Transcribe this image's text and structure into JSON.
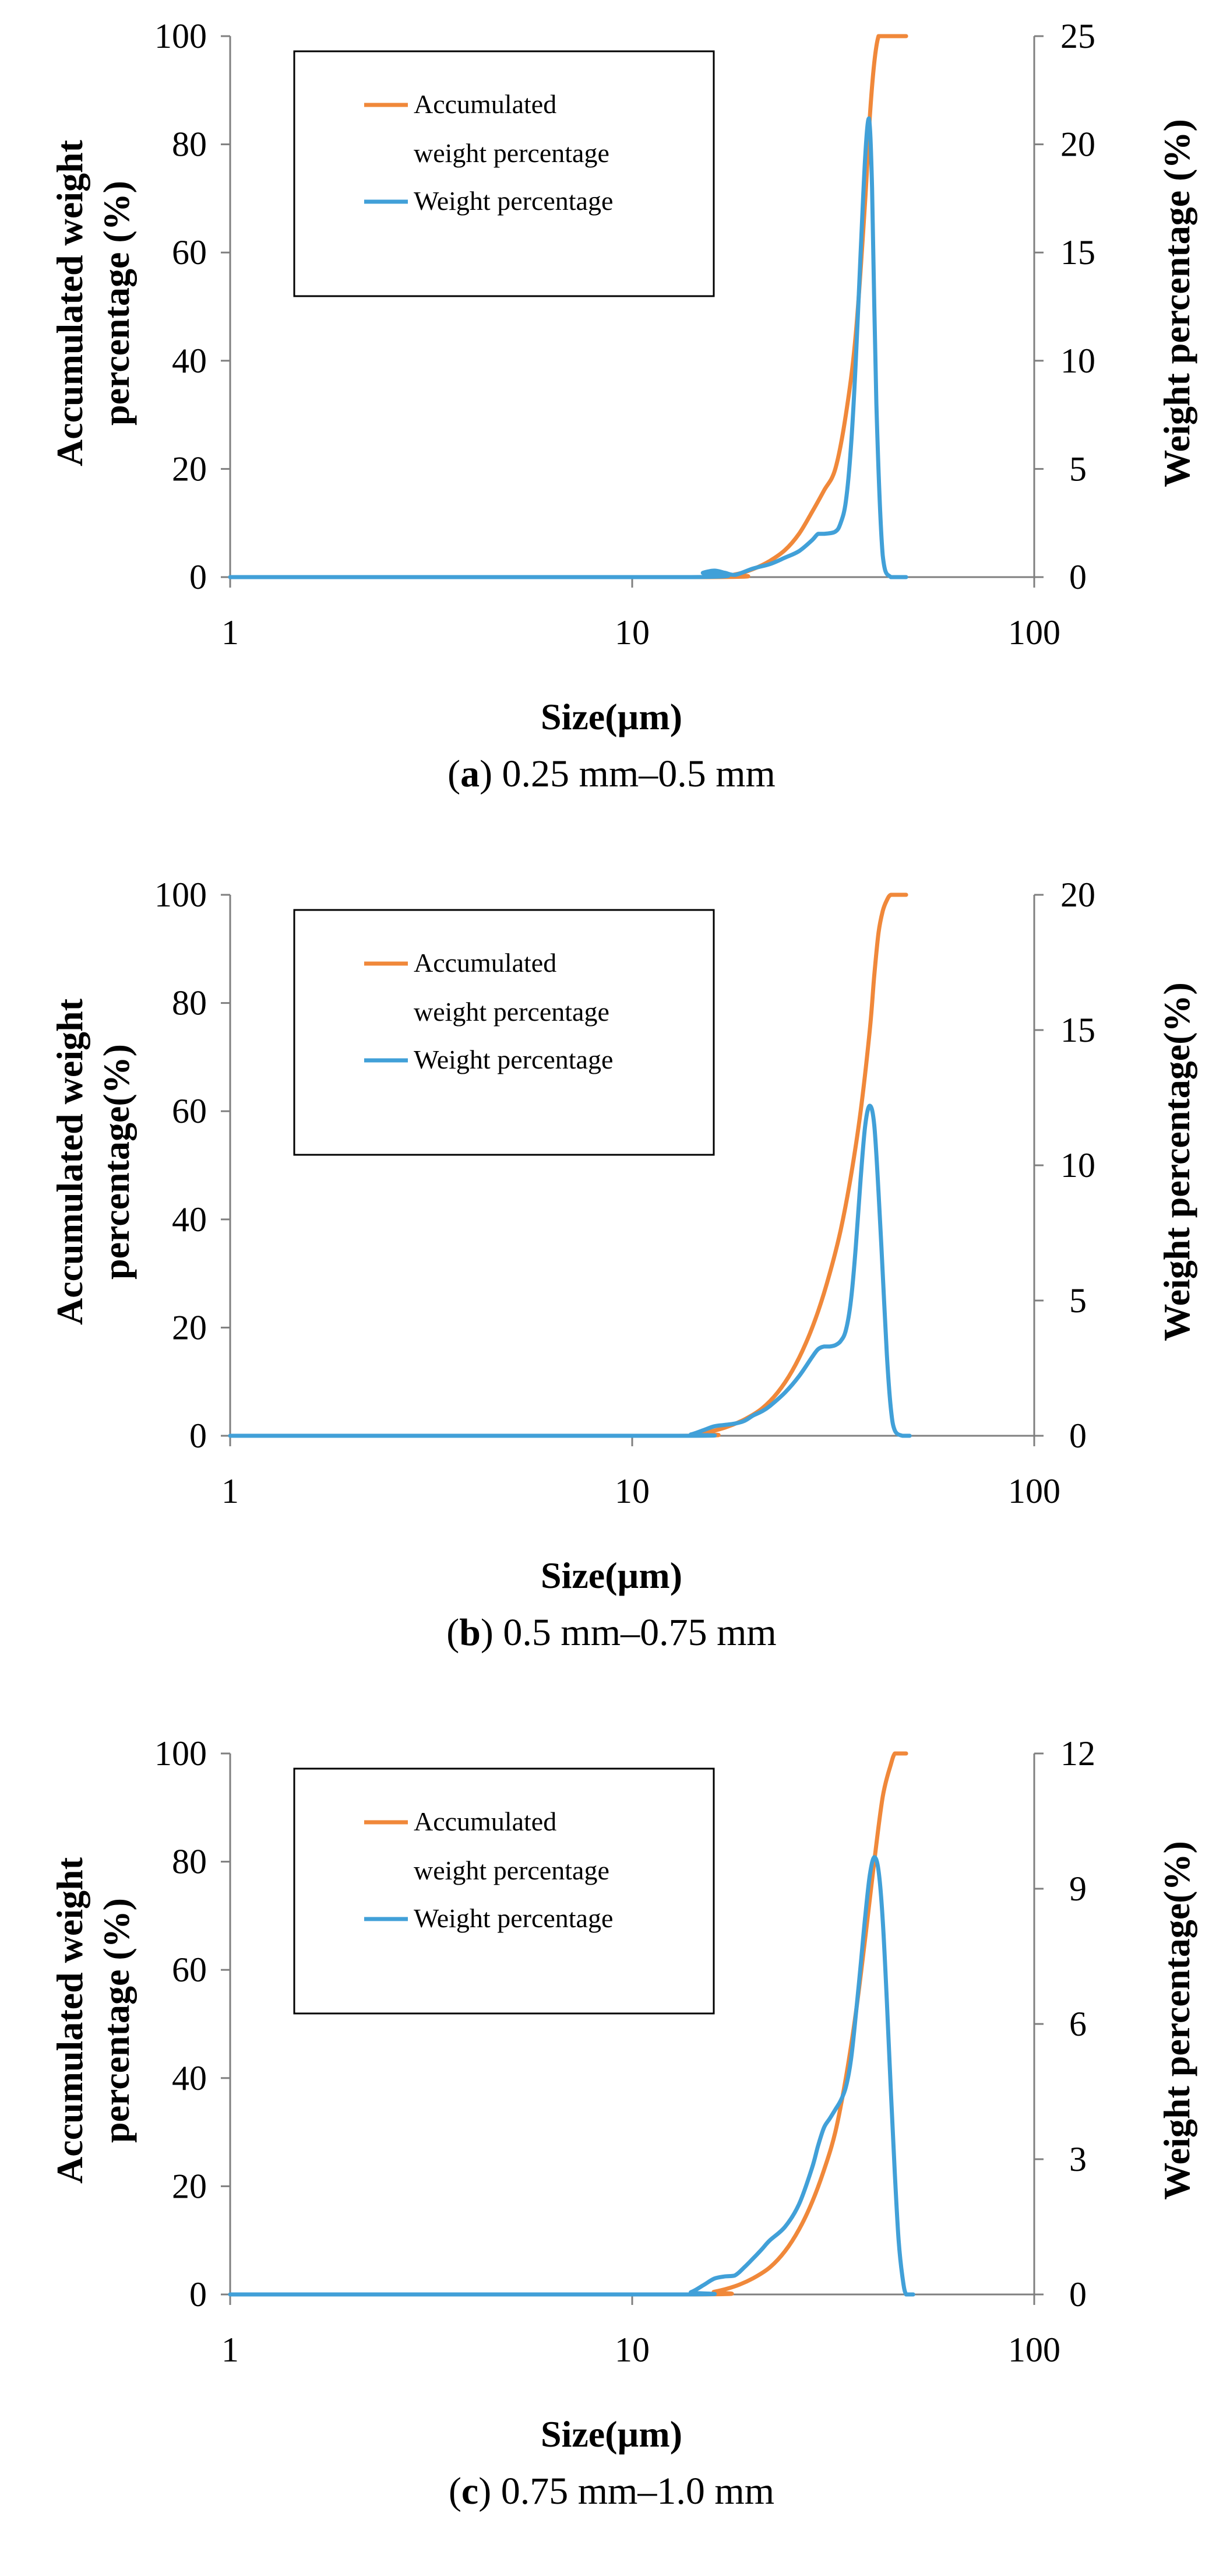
{
  "chart_data": [
    {
      "type": "line",
      "title": "",
      "caption_letter": "a",
      "caption_rest": " 0.25 mm–0.5 mm",
      "xlabel": "Size(µm)",
      "ylabel_left": [
        "Accumulated weight",
        "percentage (%)"
      ],
      "ylabel_right": "Weight percentage (%)",
      "xscale": "log",
      "xlim": [
        1,
        100
      ],
      "xticks": [
        "1",
        "10",
        "100"
      ],
      "ylim_left": [
        0,
        100
      ],
      "yticks_left": [
        "0",
        "20",
        "40",
        "60",
        "80",
        "100"
      ],
      "ylim_right": [
        0,
        25
      ],
      "yticks_right": [
        "0",
        "5",
        "10",
        "15",
        "20",
        "25"
      ],
      "legend": [
        "Accumulated",
        "weight percentage",
        "Weight percentage"
      ],
      "series": [
        {
          "name": "Accumulated weight percentage",
          "axis": "left",
          "color": "#F0883A",
          "x": [
            1,
            15,
            18,
            20,
            22,
            24,
            26,
            28,
            30,
            32,
            34,
            36,
            38,
            39,
            40,
            41,
            42,
            45,
            48
          ],
          "y": [
            0,
            0,
            0.5,
            1.5,
            3,
            5,
            8,
            12,
            16,
            20,
            30,
            45,
            70,
            85,
            95,
            100,
            100,
            100,
            100
          ]
        },
        {
          "name": "Weight percentage",
          "axis": "right",
          "color": "#41A0D8",
          "x": [
            1,
            14,
            15,
            16,
            17,
            18,
            20,
            22,
            24,
            26,
            28,
            29,
            30,
            32,
            33,
            34,
            35,
            36,
            37,
            38,
            38.8,
            39.5,
            40.5,
            42,
            44,
            48
          ],
          "y": [
            0,
            0,
            0.2,
            0.3,
            0.2,
            0.1,
            0.4,
            0.6,
            0.9,
            1.2,
            1.7,
            2.0,
            2.0,
            2.1,
            2.5,
            3.5,
            6,
            10,
            15,
            19.5,
            21.2,
            18,
            8,
            1,
            0,
            0
          ]
        }
      ]
    },
    {
      "type": "line",
      "title": "",
      "caption_letter": "b",
      "caption_rest": " 0.5 mm–0.75 mm",
      "xlabel": "Size(µm)",
      "ylabel_left": [
        "Accumulated weight",
        "percentage(%)"
      ],
      "ylabel_right": "Weight percentage(%)",
      "xscale": "log",
      "xlim": [
        1,
        100
      ],
      "xticks": [
        "1",
        "10",
        "100"
      ],
      "ylim_left": [
        0,
        100
      ],
      "yticks_left": [
        "0",
        "20",
        "40",
        "60",
        "80",
        "100"
      ],
      "ylim_right": [
        0,
        20
      ],
      "yticks_right": [
        "0",
        "5",
        "10",
        "15",
        "20"
      ],
      "legend": [
        "Accumulated",
        "weight percentage",
        "Weight percentage"
      ],
      "series": [
        {
          "name": "Accumulated weight percentage",
          "axis": "left",
          "color": "#F0883A",
          "x": [
            1,
            13,
            15,
            17,
            19,
            21,
            23,
            25,
            27,
            29,
            31,
            33,
            35,
            37,
            39,
            40,
            41,
            42,
            43,
            44,
            46,
            48
          ],
          "y": [
            0,
            0,
            0.5,
            1.5,
            3,
            5,
            8,
            12,
            17,
            23,
            30,
            38,
            48,
            60,
            75,
            85,
            93,
            97,
            99,
            100,
            100,
            100
          ]
        },
        {
          "name": "Weight percentage",
          "axis": "right",
          "color": "#41A0D8",
          "x": [
            1,
            13,
            14,
            15,
            16,
            17,
            18,
            19,
            20,
            21,
            22,
            24,
            26,
            28,
            29,
            30,
            31,
            32,
            33,
            34,
            35,
            36,
            37,
            38,
            39,
            40,
            41,
            42,
            43,
            44,
            45,
            47,
            49
          ],
          "y": [
            0,
            0,
            0.05,
            0.2,
            0.35,
            0.4,
            0.45,
            0.55,
            0.75,
            0.9,
            1.1,
            1.6,
            2.2,
            2.9,
            3.2,
            3.3,
            3.3,
            3.35,
            3.5,
            3.9,
            5,
            7,
            9.5,
            11.5,
            12.2,
            11.5,
            9,
            6,
            3,
            1,
            0.2,
            0,
            0
          ]
        }
      ]
    },
    {
      "type": "line",
      "title": "",
      "caption_letter": "c",
      "caption_rest": " 0.75 mm–1.0 mm",
      "xlabel": "Size(µm)",
      "ylabel_left": [
        "Accumulated weight",
        "percentage (%)"
      ],
      "ylabel_right": "Weight percentage(%)",
      "xscale": "log",
      "xlim": [
        1,
        100
      ],
      "xticks": [
        "1",
        "10",
        "100"
      ],
      "ylim_left": [
        0,
        100
      ],
      "yticks_left": [
        "0",
        "20",
        "40",
        "60",
        "80",
        "100"
      ],
      "ylim_right": [
        0,
        12
      ],
      "yticks_right": [
        "0",
        "3",
        "6",
        "9",
        "12"
      ],
      "legend": [
        "Accumulated",
        "weight percentage",
        "Weight percentage"
      ],
      "series": [
        {
          "name": "Accumulated weight percentage",
          "axis": "left",
          "color": "#F0883A",
          "x": [
            1,
            14,
            16,
            18,
            20,
            22,
            24,
            26,
            28,
            30,
            32,
            34,
            36,
            38,
            40,
            42,
            44,
            45,
            46,
            48
          ],
          "y": [
            0,
            0,
            0.5,
            1.5,
            3,
            5,
            8,
            12,
            17,
            23,
            30,
            40,
            52,
            66,
            80,
            92,
            98,
            100,
            100,
            100
          ]
        },
        {
          "name": "Weight percentage",
          "axis": "right",
          "color": "#41A0D8",
          "x": [
            1,
            13,
            14,
            15,
            16,
            17,
            18,
            19,
            20,
            21,
            22,
            24,
            26,
            28,
            29,
            30,
            31,
            32,
            33,
            34,
            35,
            36,
            37,
            38,
            39,
            40,
            41,
            42,
            43,
            44,
            45,
            46,
            47,
            48,
            50
          ],
          "y": [
            0,
            0,
            0.05,
            0.2,
            0.35,
            0.4,
            0.42,
            0.6,
            0.8,
            1.0,
            1.2,
            1.5,
            2.0,
            2.8,
            3.3,
            3.7,
            3.9,
            4.1,
            4.3,
            4.6,
            5.2,
            6.2,
            7.3,
            8.4,
            9.3,
            9.7,
            9.4,
            8.3,
            6.5,
            4.5,
            2.7,
            1.2,
            0.4,
            0,
            0
          ]
        }
      ]
    }
  ]
}
